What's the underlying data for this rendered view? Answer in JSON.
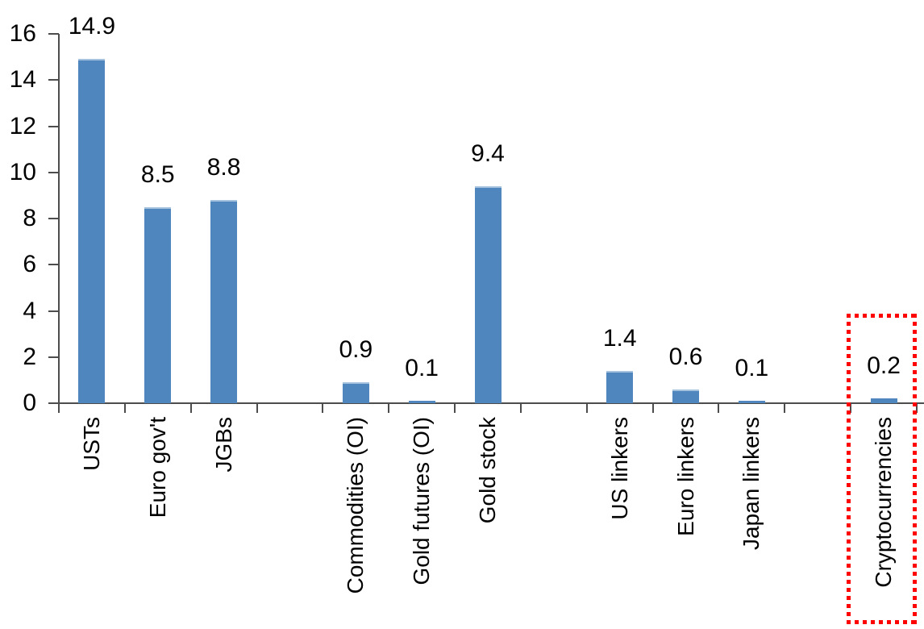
{
  "chart_data": {
    "type": "bar",
    "categories": [
      "USTs",
      "Euro gov't",
      "JGBs",
      "",
      "Commodities (OI)",
      "Gold futures (OI)",
      "Gold stock",
      "",
      "US linkers",
      "Euro linkers",
      "Japan linkers",
      "",
      "Cryptocurrencies"
    ],
    "values": [
      14.9,
      8.5,
      8.8,
      null,
      0.9,
      0.1,
      9.4,
      null,
      1.4,
      0.6,
      0.1,
      null,
      0.2
    ],
    "value_labels": [
      "14.9",
      "8.5",
      "8.8",
      null,
      "0.9",
      "0.1",
      "9.4",
      null,
      "1.4",
      "0.6",
      "0.1",
      null,
      "0.2"
    ],
    "y_axis": {
      "min": 0,
      "max": 16,
      "tick_step": 2,
      "tick_labels": [
        "0",
        "2",
        "4",
        "6",
        "8",
        "10",
        "12",
        "14",
        "16"
      ]
    },
    "grid": "off",
    "legend": "none",
    "highlight": {
      "category": "Cryptocurrencies",
      "style": "red-dotted-box"
    },
    "colors": {
      "bar": "#4e86bd",
      "bar_top_highlight": "#a4c2dd",
      "axis": "#4d4d4d",
      "text": "#000000",
      "highlight_box": "#ff0000",
      "background": "#ffffff"
    }
  }
}
